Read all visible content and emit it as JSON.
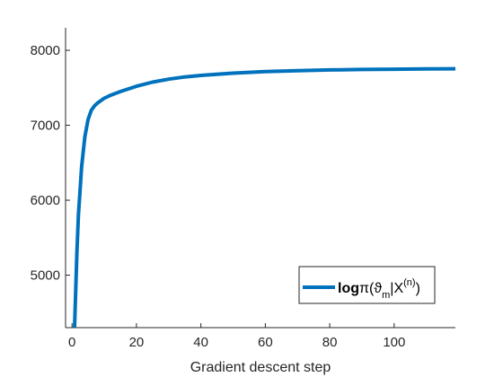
{
  "chart_data": {
    "type": "line",
    "title": "",
    "xlabel": "Gradient descent step",
    "ylabel": "",
    "xlim": [
      -2,
      119
    ],
    "ylim": [
      4300,
      8300
    ],
    "xticks": [
      0,
      20,
      40,
      60,
      80,
      100
    ],
    "yticks": [
      5000,
      6000,
      7000,
      8000
    ],
    "xtick_labels": [
      "0",
      "20",
      "40",
      "60",
      "80",
      "100"
    ],
    "ytick_labels": [
      "5000",
      "6000",
      "7000",
      "8000"
    ],
    "grid": false,
    "legend_position": "bottom-right",
    "series": [
      {
        "name": "logπ(ϑm|X(n))",
        "name_parts": {
          "a": "log",
          "b": "π(ϑ",
          "sub": "m",
          "c": "|X",
          "sup": "(n)",
          "d": ")"
        },
        "color": "#0072BD",
        "x": [
          0.8,
          1.5,
          2,
          3,
          4,
          5,
          6,
          7,
          8,
          10,
          12,
          15,
          20,
          25,
          30,
          35,
          40,
          50,
          60,
          70,
          80,
          90,
          100,
          110,
          119
        ],
        "y": [
          4300,
          5300,
          5800,
          6450,
          6850,
          7080,
          7200,
          7260,
          7300,
          7360,
          7400,
          7450,
          7520,
          7575,
          7615,
          7645,
          7665,
          7695,
          7715,
          7728,
          7738,
          7744,
          7748,
          7751,
          7754
        ]
      }
    ]
  }
}
